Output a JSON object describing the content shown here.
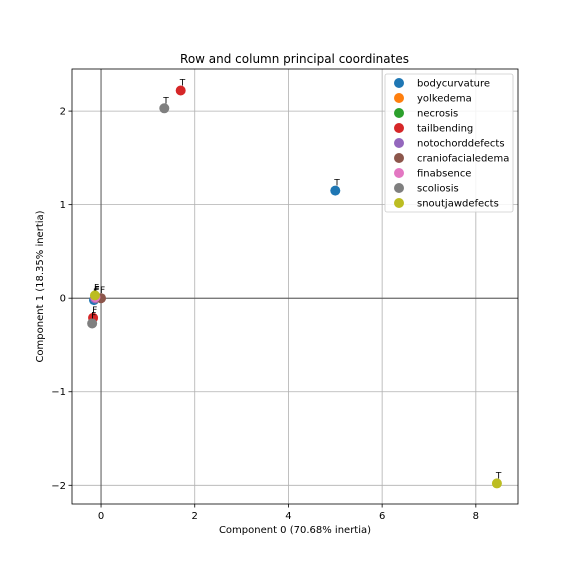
{
  "chart_data": {
    "type": "scatter",
    "title": "Row and column principal coordinates",
    "xlabel": "Component 0 (70.68% inertia)",
    "ylabel": "Component 1 (18.35% inertia)",
    "xlim": [
      -0.62,
      8.9
    ],
    "ylim": [
      -2.2,
      2.45
    ],
    "xticks": [
      0,
      2,
      4,
      6,
      8
    ],
    "xtick_labels": [
      "0",
      "2",
      "4",
      "6",
      "8"
    ],
    "yticks": [
      -2,
      -1,
      0,
      1,
      2
    ],
    "ytick_labels": [
      "−2",
      "−1",
      "0",
      "1",
      "2"
    ],
    "grid": true,
    "reference_lines": {
      "x": 0,
      "y": 0
    },
    "legend_position": "top-right",
    "series": [
      {
        "name": "bodycurvature",
        "color": "#1f77b4",
        "points": [
          {
            "x": 5.0,
            "y": 1.15,
            "label": "T"
          },
          {
            "x": -0.15,
            "y": -0.02,
            "label": "F"
          }
        ]
      },
      {
        "name": "yolkedema",
        "color": "#ff7f0e",
        "points": [
          {
            "x": -0.12,
            "y": 0.0,
            "label": "F"
          }
        ]
      },
      {
        "name": "necrosis",
        "color": "#2ca02c",
        "points": [
          {
            "x": -0.12,
            "y": 0.01,
            "label": "F"
          }
        ]
      },
      {
        "name": "tailbending",
        "color": "#d62728",
        "points": [
          {
            "x": 1.7,
            "y": 2.22,
            "label": "T"
          },
          {
            "x": -0.17,
            "y": -0.21,
            "label": "F"
          }
        ]
      },
      {
        "name": "notochorddefects",
        "color": "#9467bd",
        "points": [
          {
            "x": -0.13,
            "y": 0.0,
            "label": "F"
          }
        ]
      },
      {
        "name": "craniofacialedema",
        "color": "#8c564b",
        "points": [
          {
            "x": 0.0,
            "y": 0.0,
            "label": "F"
          }
        ]
      },
      {
        "name": "finabsence",
        "color": "#e377c2",
        "points": [
          {
            "x": -0.12,
            "y": 0.01,
            "label": "F"
          }
        ]
      },
      {
        "name": "scoliosis",
        "color": "#7f7f7f",
        "points": [
          {
            "x": 1.35,
            "y": 2.03,
            "label": "T"
          },
          {
            "x": -0.19,
            "y": -0.27,
            "label": "F"
          }
        ]
      },
      {
        "name": "snoutjawdefects",
        "color": "#bcbd22",
        "points": [
          {
            "x": 8.45,
            "y": -1.98,
            "label": "T"
          },
          {
            "x": -0.13,
            "y": 0.03,
            "label": "F"
          }
        ]
      }
    ]
  }
}
